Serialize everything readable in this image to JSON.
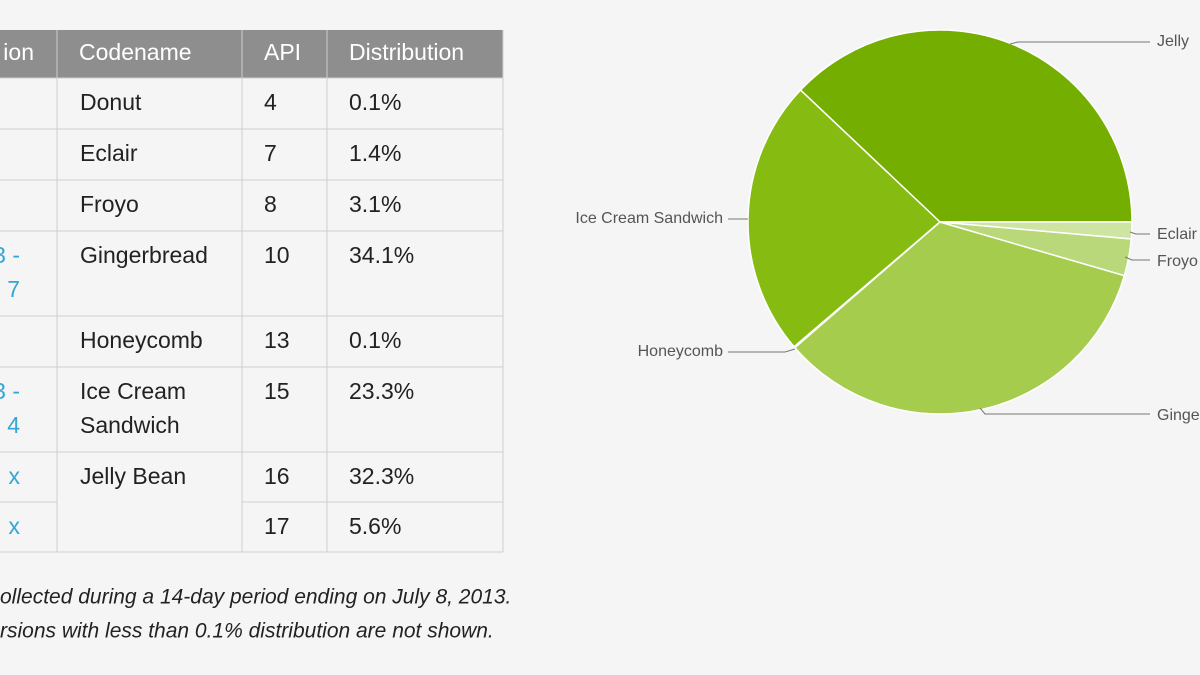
{
  "table": {
    "header": [
      "ion",
      "Codename",
      "API",
      "Distribution"
    ],
    "rows": [
      {
        "codename": "Donut",
        "api": 4,
        "distribution": "0.1%"
      },
      {
        "codename": "Eclair",
        "api": 7,
        "distribution": "1.4%"
      },
      {
        "codename": "Froyo",
        "api": 8,
        "distribution": "3.1%"
      },
      {
        "version": [
          "3 -",
          "7"
        ],
        "codename": "Gingerbread",
        "api": 10,
        "distribution": "34.1%"
      },
      {
        "codename": "Honeycomb",
        "api": 13,
        "distribution": "0.1%"
      },
      {
        "version": [
          "3 -",
          "4"
        ],
        "codename": [
          "Ice Cream",
          "Sandwich"
        ],
        "api": 15,
        "distribution": "23.3%"
      },
      {
        "version": [
          "x"
        ],
        "codename": "Jelly Bean",
        "api": 16,
        "distribution": "32.3%"
      },
      {
        "version": [
          "x"
        ],
        "api": 17,
        "distribution": "5.6%"
      }
    ]
  },
  "footnote": [
    "ollected during a 14-day period ending on July 8, 2013.",
    "rsions with less than 0.1% distribution are not shown."
  ],
  "chart_data": {
    "type": "pie",
    "labels": [
      "Jelly",
      "Ice Cream Sandwich",
      "Honeycomb",
      "Ginge",
      "Froyo",
      "Eclair"
    ],
    "values": [
      37.9,
      23.3,
      0.1,
      34.1,
      3.1,
      1.4
    ],
    "colors": [
      "#74ae00",
      "#86bb12",
      "#97c43a",
      "#a6cc4e",
      "#b9d87a",
      "#cde4a2"
    ]
  }
}
